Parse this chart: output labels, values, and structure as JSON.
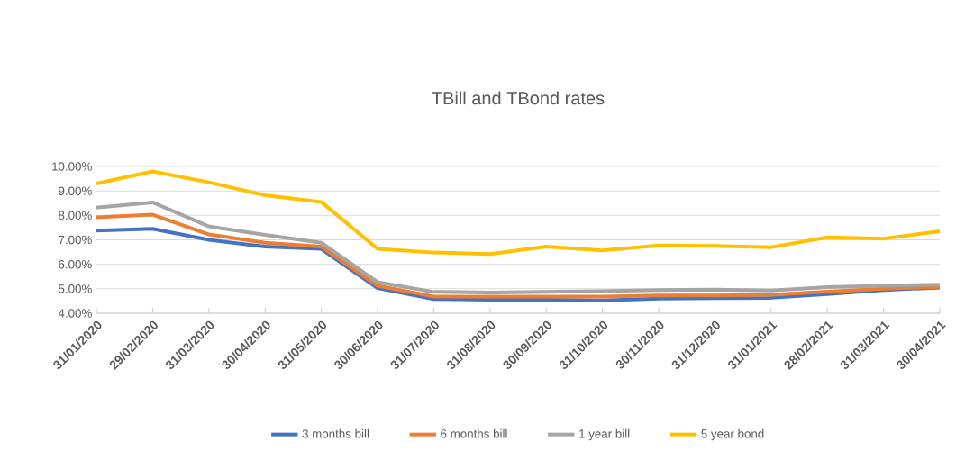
{
  "chart_data": {
    "type": "line",
    "title": "TBill and TBond rates",
    "categories": [
      "31/01/2020",
      "29/02/2020",
      "31/03/2020",
      "30/04/2020",
      "31/05/2020",
      "30/06/2020",
      "31/07/2020",
      "31/08/2020",
      "30/09/2020",
      "31/10/2020",
      "30/11/2020",
      "31/12/2020",
      "31/01/2021",
      "28/02/2021",
      "31/03/2021",
      "30/04/2021"
    ],
    "series": [
      {
        "name": "3 months bill",
        "color": "#4472c4",
        "values": [
          7.38,
          7.45,
          7.0,
          6.72,
          6.63,
          5.03,
          4.58,
          4.55,
          4.55,
          4.52,
          4.6,
          4.62,
          4.63,
          4.78,
          4.95,
          5.05
        ]
      },
      {
        "name": "6 months  bill",
        "color": "#ed7d31",
        "values": [
          7.92,
          8.03,
          7.22,
          6.88,
          6.72,
          5.12,
          4.68,
          4.68,
          4.68,
          4.68,
          4.73,
          4.73,
          4.75,
          4.88,
          5.0,
          5.08
        ]
      },
      {
        "name": "1 year bill",
        "color": "#a5a5a5",
        "values": [
          8.32,
          8.53,
          7.55,
          7.2,
          6.88,
          5.27,
          4.87,
          4.85,
          4.87,
          4.9,
          4.95,
          4.97,
          4.93,
          5.07,
          5.12,
          5.17
        ]
      },
      {
        "name": "5 year bond",
        "color": "#ffc000",
        "values": [
          9.3,
          9.8,
          9.35,
          8.82,
          8.55,
          6.63,
          6.48,
          6.42,
          6.72,
          6.57,
          6.77,
          6.75,
          6.7,
          7.1,
          7.05,
          7.35
        ]
      }
    ],
    "ylim": [
      4,
      10
    ],
    "yticks": [
      {
        "value": 4,
        "label": "4.00%"
      },
      {
        "value": 5,
        "label": "5.00%"
      },
      {
        "value": 6,
        "label": "6.00%"
      },
      {
        "value": 7,
        "label": "7.00%"
      },
      {
        "value": 8,
        "label": "8.00%"
      },
      {
        "value": 9,
        "label": "9.00%"
      },
      {
        "value": 10,
        "label": "10.00%"
      }
    ],
    "grid": "y",
    "legend": "bottom",
    "marker": "none",
    "line_style": "solid"
  }
}
